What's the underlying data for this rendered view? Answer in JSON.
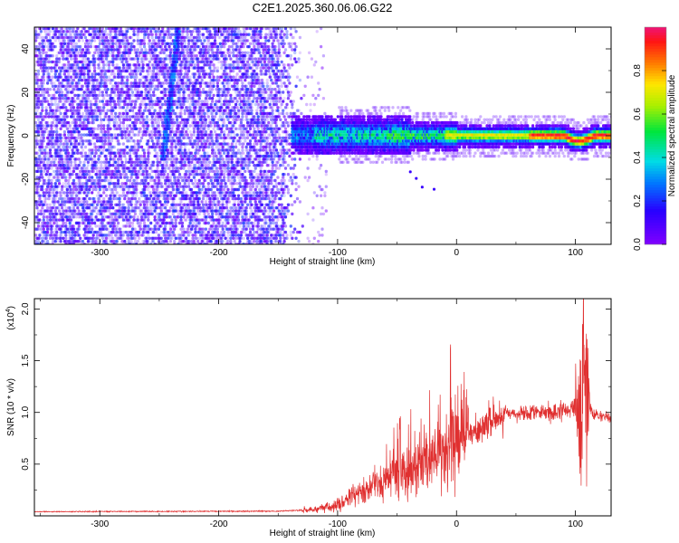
{
  "title": "C2E1.2025.360.06.06.G22",
  "chart_data": [
    {
      "type": "heatmap",
      "xlabel": "Height of straight line (km)",
      "ylabel": "Frequency (Hz)",
      "xlim": [
        -355,
        130
      ],
      "ylim": [
        -50,
        50
      ],
      "x_ticks": [
        -300,
        -200,
        -100,
        0,
        100
      ],
      "y_ticks": [
        -40,
        -20,
        0,
        20,
        40
      ],
      "grid": false,
      "colorbar": {
        "label": "Normalized spectral amplitude",
        "range": [
          0,
          1
        ],
        "ticks": [
          "0.0",
          "0.2",
          "0.4",
          "0.6",
          "0.8"
        ]
      },
      "features": {
        "noise_region_x": [
          -355,
          -130
        ],
        "noise_amplitude": 0.15,
        "streak": {
          "x_top": -235,
          "x_bottom": -248,
          "freq_top": 50,
          "freq_bottom": -12
        },
        "ridge_x": [
          -140,
          130
        ],
        "ridge_center_freq": 0,
        "ridge_peak_amplitude": 1.0
      }
    },
    {
      "type": "line",
      "xlabel": "Height of straight line (km)",
      "ylabel": "SNR (10 * v/v)",
      "y_multiplier": "(x10",
      "y_exponent": "4",
      "xlim": [
        -355,
        130
      ],
      "ylim": [
        0,
        21000
      ],
      "x_ticks": [
        -300,
        -200,
        -100,
        0,
        100
      ],
      "y_ticks": [
        "0.5",
        "1.0",
        "1.5",
        "2.0"
      ],
      "y_tick_values": [
        5000,
        10000,
        15000,
        20000
      ],
      "color": "#e03030",
      "series": [
        {
          "envelope_x": [
            -355,
            -150,
            -120,
            -100,
            -80,
            -60,
            -40,
            -20,
            0,
            10,
            20,
            30,
            40,
            50,
            60,
            70,
            80,
            90,
            100,
            105,
            108,
            110,
            115,
            120,
            130
          ],
          "envelope_y": [
            400,
            450,
            600,
            1200,
            2300,
            3300,
            4500,
            5500,
            7000,
            7800,
            8500,
            9200,
            9700,
            9900,
            10000,
            10000,
            10100,
            10200,
            10300,
            9800,
            16000,
            11000,
            9800,
            9600,
            9500
          ]
        }
      ]
    }
  ]
}
